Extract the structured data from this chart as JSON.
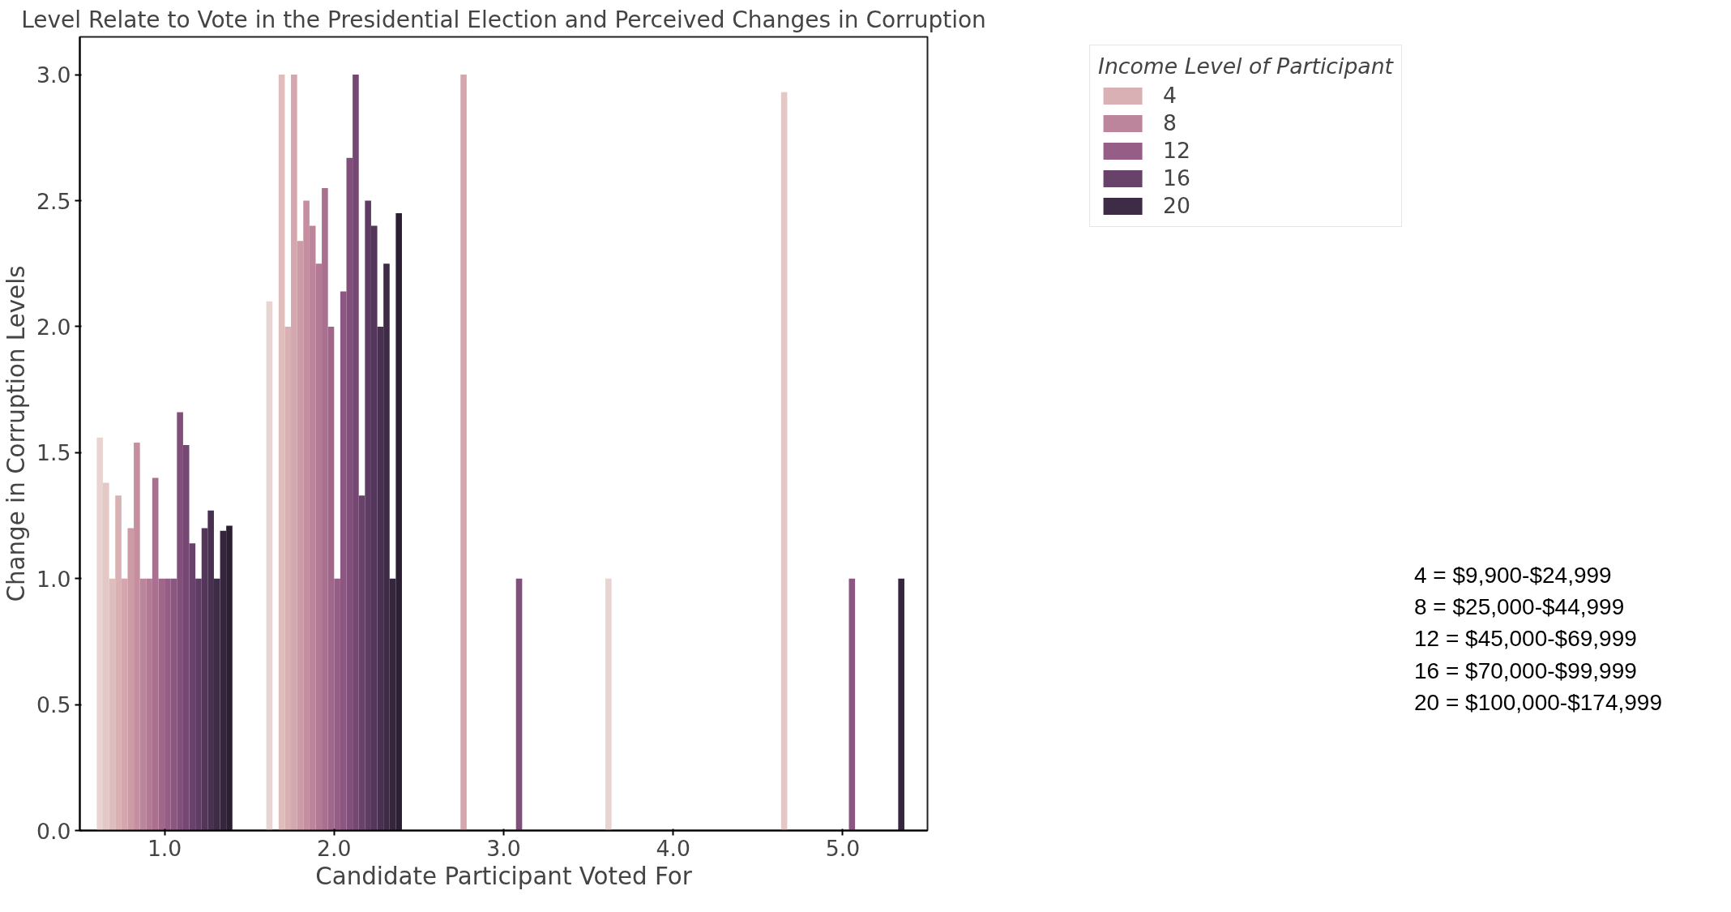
{
  "chart_data": {
    "type": "bar",
    "title": "Level Relate to Vote in the Presidential Election and Perceived Changes in Corruption",
    "xlabel": "Candidate Participant Voted For",
    "ylabel": "Change in Corruption Levels",
    "legend_title": "Income Level of Participant",
    "categories": [
      "1.0",
      "2.0",
      "3.0",
      "4.0",
      "5.0"
    ],
    "ylim": [
      0,
      3.15
    ],
    "yticks": [
      {
        "value": 0,
        "label": "0.0"
      },
      {
        "value": 0.5,
        "label": "0.5"
      },
      {
        "value": 1,
        "label": "1.0"
      },
      {
        "value": 1.5,
        "label": "1.5"
      },
      {
        "value": 2,
        "label": "2.0"
      },
      {
        "value": 2.5,
        "label": "2.5"
      },
      {
        "value": 3,
        "label": "3.0"
      }
    ],
    "grid": false,
    "legend": "right",
    "series": [
      {
        "color": "#e8d4d0",
        "values": [
          1.56,
          2.1,
          null,
          1.0,
          null
        ]
      },
      {
        "color": "#e3c8c5",
        "values": [
          1.38,
          null,
          null,
          null,
          2.93
        ]
      },
      {
        "color": "#dfbdbc",
        "values": [
          1.0,
          3.0,
          null,
          null,
          null
        ]
      },
      {
        "name": "4",
        "color": "#d9b1b4",
        "values": [
          1.33,
          2.0,
          null,
          null,
          null
        ]
      },
      {
        "color": "#d4a6ad",
        "values": [
          1.0,
          3.0,
          3.0,
          null,
          null
        ]
      },
      {
        "color": "#cd9ba6",
        "values": [
          1.2,
          2.34,
          null,
          null,
          null
        ]
      },
      {
        "color": "#c58fa0",
        "values": [
          1.54,
          2.5,
          null,
          null,
          null
        ]
      },
      {
        "name": "8",
        "color": "#bd859b",
        "values": [
          1.0,
          2.4,
          null,
          null,
          null
        ]
      },
      {
        "color": "#b47a95",
        "values": [
          1.0,
          2.25,
          null,
          null,
          null
        ]
      },
      {
        "color": "#aa7090",
        "values": [
          1.4,
          2.55,
          null,
          null,
          null
        ]
      },
      {
        "color": "#a0678b",
        "values": [
          1.0,
          2.0,
          null,
          null,
          null
        ]
      },
      {
        "name": "12",
        "color": "#965e86",
        "values": [
          1.0,
          1.0,
          null,
          null,
          null
        ]
      },
      {
        "color": "#8b5680",
        "values": [
          1.0,
          2.14,
          null,
          null,
          1.0
        ]
      },
      {
        "color": "#804f7a",
        "values": [
          1.66,
          2.67,
          1.0,
          null,
          null
        ]
      },
      {
        "color": "#744873",
        "values": [
          1.53,
          3.0,
          null,
          null,
          null
        ]
      },
      {
        "name": "16",
        "color": "#69426b",
        "values": [
          1.14,
          1.33,
          null,
          null,
          null
        ]
      },
      {
        "color": "#5e3c63",
        "values": [
          1.0,
          2.5,
          null,
          null,
          null
        ]
      },
      {
        "color": "#53365a",
        "values": [
          1.2,
          2.4,
          null,
          null,
          null
        ]
      },
      {
        "color": "#483150",
        "values": [
          1.27,
          2.0,
          null,
          null,
          null
        ]
      },
      {
        "name": "20",
        "color": "#3e2b46",
        "values": [
          1.0,
          2.25,
          null,
          null,
          null
        ]
      },
      {
        "color": "#35253d",
        "values": [
          1.19,
          1.0,
          null,
          null,
          1.0
        ]
      },
      {
        "color": "#2c1f34",
        "values": [
          1.21,
          2.45,
          null,
          null,
          null
        ]
      }
    ],
    "annotations": [
      "4 = $9,900-$24,999",
      "8 = $25,000-$44,999",
      "12 = $45,000-$69,999",
      "16 = $70,000-$99,999",
      "20 = $100,000-$174,999"
    ]
  }
}
